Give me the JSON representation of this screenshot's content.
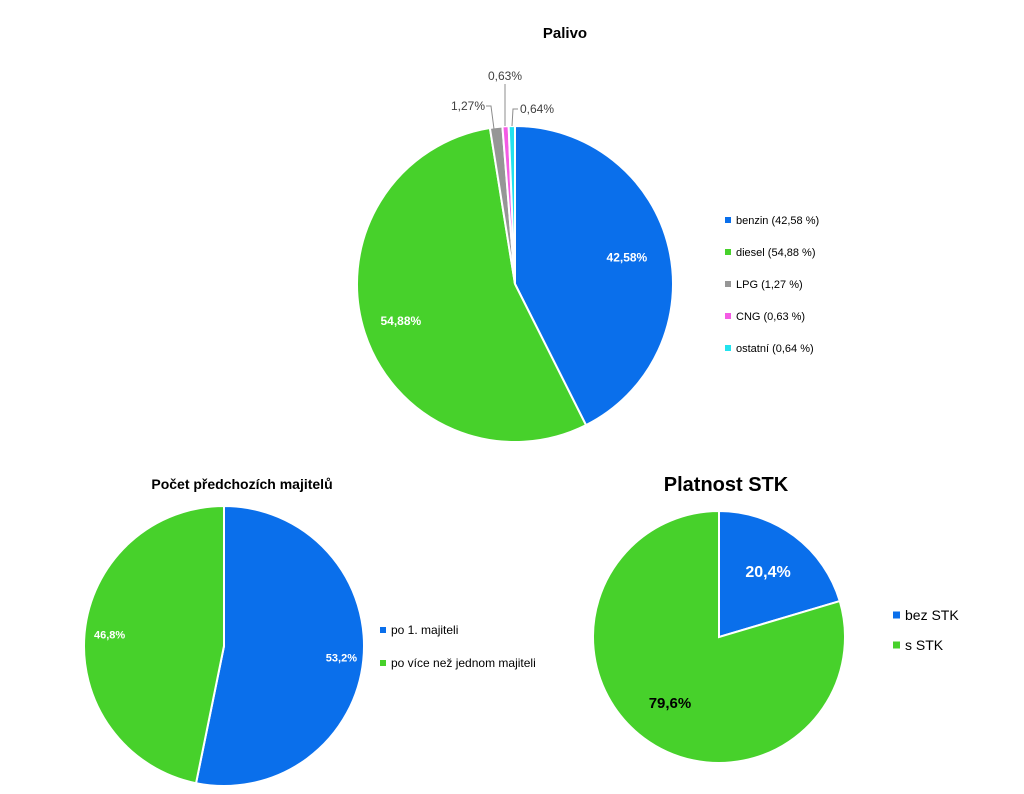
{
  "chart_data": [
    {
      "type": "pie",
      "title": "Palivo",
      "slices": [
        {
          "label": "benzin (42,58 %)",
          "data_label": "42,58%",
          "value": 42.58,
          "color": "#0A6FEB"
        },
        {
          "label": "diesel (54,88 %)",
          "data_label": "54,88%",
          "value": 54.88,
          "color": "#47D12B"
        },
        {
          "label": "LPG (1,27 %)",
          "data_label": "1,27%",
          "value": 1.27,
          "color": "#969696"
        },
        {
          "label": "CNG (0,63 %)",
          "data_label": "0,63%",
          "value": 0.63,
          "color": "#F45BE4"
        },
        {
          "label": "ostatní (0,64 %)",
          "data_label": "0,64%",
          "value": 0.64,
          "color": "#22E3EE"
        }
      ],
      "legend_position": "right"
    },
    {
      "type": "pie",
      "title": "Počet předchozích majitelů",
      "slices": [
        {
          "label": "po 1. majiteli",
          "data_label": "53,2%",
          "value": 53.2,
          "color": "#0A6FEB"
        },
        {
          "label": "po více než jednom majiteli",
          "data_label": "46,8%",
          "value": 46.8,
          "color": "#47D12B"
        }
      ],
      "legend_position": "right"
    },
    {
      "type": "pie",
      "title": "Platnost STK",
      "slices": [
        {
          "label": "bez STK",
          "data_label": "20,4%",
          "value": 20.4,
          "color": "#0A6FEB"
        },
        {
          "label": "s STK",
          "data_label": "79,6%",
          "value": 79.6,
          "color": "#47D12B"
        }
      ],
      "legend_position": "right"
    }
  ]
}
